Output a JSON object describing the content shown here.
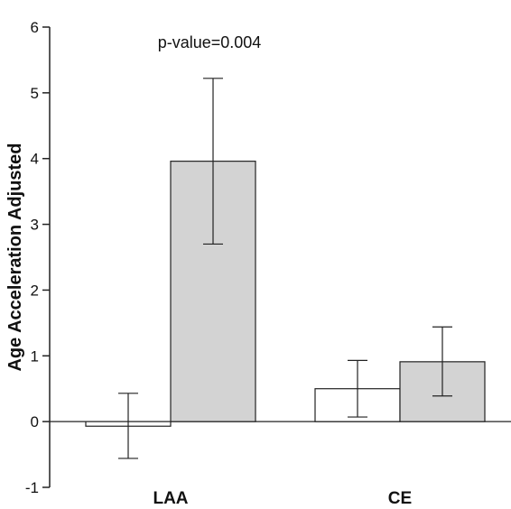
{
  "chart_data": {
    "type": "bar",
    "categories": [
      "LAA",
      "CE"
    ],
    "ylabel": "Age Acceleration Adjusted",
    "xlabel": "",
    "ylim": [
      -1,
      6
    ],
    "yticks": [
      "-1",
      "0",
      "1",
      "2",
      "3",
      "4",
      "5",
      "6"
    ],
    "annotation": "p-value=0.004",
    "grid": false,
    "legend": "none",
    "series": [
      {
        "fill": "#ffffff",
        "values": [
          -0.07,
          0.5
        ],
        "err_low": [
          -0.56,
          0.07
        ],
        "err_high": [
          0.43,
          0.93
        ]
      },
      {
        "fill": "#d3d3d3",
        "values": [
          3.96,
          0.91
        ],
        "err_low": [
          2.7,
          0.39
        ],
        "err_high": [
          5.22,
          1.44
        ]
      }
    ]
  }
}
